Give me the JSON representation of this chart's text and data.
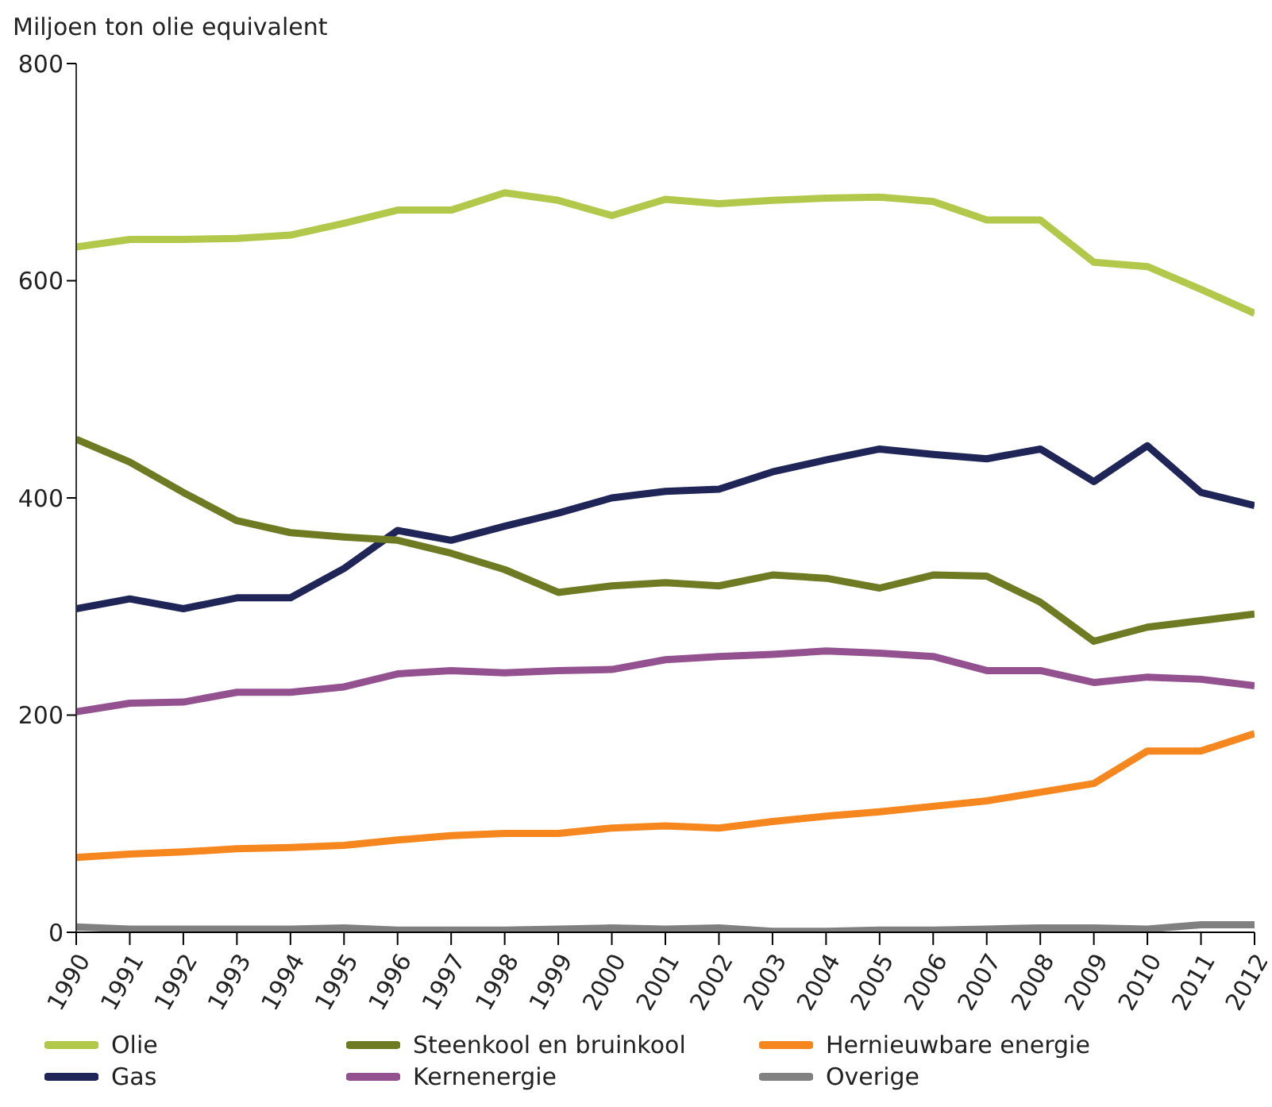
{
  "chart_data": {
    "type": "line",
    "ylabel": "Miljoen ton olie equivalent",
    "categories": [
      "1990",
      "1991",
      "1992",
      "1993",
      "1994",
      "1995",
      "1996",
      "1997",
      "1998",
      "1999",
      "2000",
      "2001",
      "2002",
      "2003",
      "2004",
      "2005",
      "2006",
      "2007",
      "2008",
      "2009",
      "2010",
      "2011",
      "2012"
    ],
    "series": [
      {
        "name": "Olie",
        "color": "#b2c84a",
        "values": [
          631,
          638,
          638,
          639,
          642,
          653,
          665,
          665,
          681,
          674,
          660,
          675,
          671,
          674,
          676,
          677,
          673,
          656,
          656,
          617,
          613,
          592,
          570
        ]
      },
      {
        "name": "Gas",
        "color": "#1f2557",
        "values": [
          298,
          307,
          298,
          308,
          308,
          335,
          370,
          361,
          374,
          386,
          400,
          406,
          408,
          424,
          435,
          445,
          440,
          436,
          445,
          415,
          448,
          405,
          393
        ]
      },
      {
        "name": "Steenkool en bruinkool",
        "color": "#6e7b22",
        "values": [
          454,
          433,
          405,
          379,
          368,
          364,
          361,
          349,
          334,
          313,
          319,
          322,
          319,
          329,
          326,
          317,
          329,
          328,
          304,
          268,
          281,
          287,
          293
        ]
      },
      {
        "name": "Kernenergie",
        "color": "#93528f",
        "values": [
          203,
          211,
          212,
          221,
          221,
          226,
          238,
          241,
          239,
          241,
          242,
          251,
          254,
          256,
          259,
          257,
          254,
          241,
          241,
          230,
          235,
          233,
          227
        ]
      },
      {
        "name": "Hernieuwbare energie",
        "color": "#f6871f",
        "values": [
          69,
          72,
          74,
          77,
          78,
          80,
          85,
          89,
          91,
          91,
          96,
          98,
          96,
          102,
          107,
          111,
          116,
          121,
          129,
          137,
          167,
          167,
          183
        ]
      },
      {
        "name": "Overige",
        "color": "#808080",
        "values": [
          5,
          3,
          3,
          3,
          3,
          4,
          2,
          2,
          2,
          3,
          4,
          3,
          4,
          1,
          1,
          2,
          2,
          3,
          4,
          4,
          3,
          7,
          7
        ]
      }
    ],
    "ylim": [
      0,
      800
    ],
    "yticks": [
      0,
      200,
      400,
      600,
      800
    ],
    "grid": false,
    "legend": "bottom",
    "marker": "none",
    "line_style": "solid"
  }
}
